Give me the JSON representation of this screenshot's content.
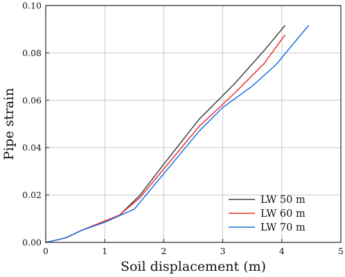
{
  "chart_data": {
    "type": "line",
    "title": "",
    "xlabel": "Soil displacement (m)",
    "ylabel": "Pipe strain",
    "xlim": [
      0,
      5
    ],
    "ylim": [
      0,
      0.1
    ],
    "x_ticks": [
      0,
      1,
      2,
      3,
      4,
      5
    ],
    "y_ticks": [
      0.0,
      0.02,
      0.04,
      0.06,
      0.08,
      0.1
    ],
    "x_tick_labels": [
      "0",
      "1",
      "2",
      "3",
      "4",
      "5"
    ],
    "y_tick_labels": [
      "0.00",
      "0.02",
      "0.04",
      "0.06",
      "0.08",
      "0.10"
    ],
    "grid": true,
    "legend_position": "bottom-right",
    "series": [
      {
        "name": "LW 50 m",
        "color": "#404040",
        "x": [
          0.0,
          0.1,
          0.35,
          0.6,
          1.0,
          1.25,
          1.6,
          2.0,
          2.6,
          3.2,
          3.7,
          4.05
        ],
        "y": [
          0.0,
          0.0005,
          0.002,
          0.005,
          0.009,
          0.0115,
          0.02,
          0.033,
          0.052,
          0.067,
          0.081,
          0.0915
        ]
      },
      {
        "name": "LW 60 m",
        "color": "#e8302c",
        "x": [
          0.0,
          0.1,
          0.35,
          0.6,
          1.0,
          1.25,
          1.6,
          2.0,
          2.6,
          3.2,
          3.7,
          4.05
        ],
        "y": [
          0.0,
          0.0005,
          0.002,
          0.005,
          0.009,
          0.0115,
          0.019,
          0.031,
          0.049,
          0.063,
          0.0755,
          0.0875
        ]
      },
      {
        "name": "LW 70 m",
        "color": "#1a6fe0",
        "x": [
          0.0,
          0.1,
          0.35,
          0.6,
          1.0,
          1.5,
          2.0,
          2.6,
          3.0,
          3.5,
          3.9,
          4.45
        ],
        "y": [
          0.0,
          0.0005,
          0.002,
          0.005,
          0.0085,
          0.014,
          0.029,
          0.047,
          0.057,
          0.066,
          0.075,
          0.0915
        ]
      }
    ]
  }
}
